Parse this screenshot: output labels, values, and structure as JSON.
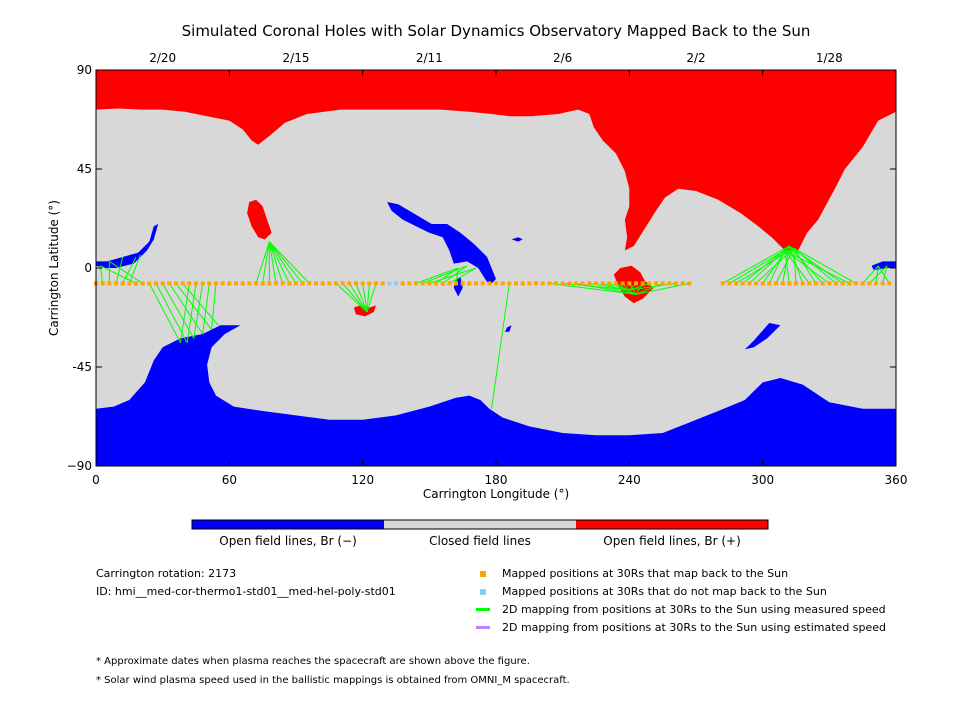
{
  "title": "Simulated Coronal Holes with Solar Dynamics Observatory Mapped Back to the Sun",
  "chart_data": {
    "type": "map",
    "xlabel": "Carrington Longitude (°)",
    "ylabel": "Carrington Latitude (°)",
    "xlim": [
      0,
      360
    ],
    "ylim": [
      -90,
      90
    ],
    "x_ticks": [
      0,
      60,
      120,
      180,
      240,
      300,
      360
    ],
    "y_ticks": [
      {
        "value": 90,
        "label": "90"
      },
      {
        "value": 45,
        "label": "45"
      },
      {
        "value": 0,
        "label": "0"
      },
      {
        "value": -45,
        "label": "-45"
      },
      {
        "value": -90,
        "label": "−90"
      }
    ],
    "top_axis_dates": [
      {
        "label": "2/20",
        "lon": 30
      },
      {
        "label": "2/15",
        "lon": 90
      },
      {
        "label": "2/11",
        "lon": 150
      },
      {
        "label": "2/6",
        "lon": 210
      },
      {
        "label": "2/2",
        "lon": 270
      },
      {
        "label": "1/28",
        "lon": 330
      }
    ],
    "colors": {
      "open_negative": "#0000ff",
      "closed": "#d8d8d8",
      "open_positive": "#ff0000",
      "mapped_back": "#ffa500",
      "not_mapped": "#87cefa",
      "measured_speed": "#00ff00",
      "estimated_speed": "#c080ff"
    },
    "colorbar_labels": [
      "Open field lines, Br (−)",
      "Closed field lines",
      "Open field lines, Br (+)"
    ],
    "north_positive_boundary": [
      [
        0,
        72
      ],
      [
        10,
        72.5
      ],
      [
        20,
        72
      ],
      [
        30,
        72
      ],
      [
        40,
        71
      ],
      [
        50,
        69
      ],
      [
        60,
        67
      ],
      [
        66,
        63
      ],
      [
        70,
        58
      ],
      [
        73,
        56
      ],
      [
        78,
        60
      ],
      [
        85,
        66
      ],
      [
        95,
        70
      ],
      [
        110,
        72
      ],
      [
        125,
        72
      ],
      [
        140,
        72
      ],
      [
        155,
        72
      ],
      [
        168,
        71
      ],
      [
        178,
        70
      ],
      [
        186,
        69
      ],
      [
        196,
        69
      ],
      [
        208,
        70
      ],
      [
        217,
        72
      ],
      [
        222,
        70
      ],
      [
        224,
        64
      ],
      [
        228,
        58
      ],
      [
        234,
        52
      ],
      [
        238,
        44
      ],
      [
        240,
        36
      ],
      [
        240,
        28
      ],
      [
        238,
        22
      ],
      [
        239,
        14
      ],
      [
        238,
        8
      ],
      [
        242,
        10
      ],
      [
        247,
        18
      ],
      [
        252,
        26
      ],
      [
        256,
        32
      ],
      [
        262,
        36
      ],
      [
        270,
        35
      ],
      [
        280,
        31
      ],
      [
        290,
        25
      ],
      [
        298,
        19
      ],
      [
        304,
        14
      ],
      [
        310,
        8
      ],
      [
        316,
        8
      ],
      [
        318,
        12
      ],
      [
        320,
        16
      ],
      [
        325,
        22
      ],
      [
        333,
        37
      ],
      [
        337,
        45
      ],
      [
        345,
        55
      ],
      [
        352,
        67
      ],
      [
        360,
        71
      ]
    ],
    "south_negative_boundary": [
      [
        0,
        -64
      ],
      [
        8,
        -63
      ],
      [
        15,
        -60
      ],
      [
        22,
        -52
      ],
      [
        26,
        -42
      ],
      [
        30,
        -36
      ],
      [
        38,
        -32
      ],
      [
        48,
        -30
      ],
      [
        56,
        -26
      ],
      [
        65,
        -26
      ],
      [
        58,
        -30
      ],
      [
        52,
        -36
      ],
      [
        50,
        -44
      ],
      [
        51,
        -52
      ],
      [
        54,
        -58
      ],
      [
        62,
        -63
      ],
      [
        75,
        -65
      ],
      [
        90,
        -67
      ],
      [
        105,
        -69
      ],
      [
        120,
        -69
      ],
      [
        135,
        -67
      ],
      [
        150,
        -63
      ],
      [
        162,
        -59
      ],
      [
        168,
        -58
      ],
      [
        173,
        -60
      ],
      [
        177,
        -64
      ],
      [
        183,
        -68
      ],
      [
        195,
        -72
      ],
      [
        210,
        -75
      ],
      [
        225,
        -76
      ],
      [
        240,
        -76
      ],
      [
        255,
        -75
      ],
      [
        265,
        -71
      ],
      [
        280,
        -65
      ],
      [
        292,
        -60
      ],
      [
        300,
        -52
      ],
      [
        308,
        -50
      ],
      [
        318,
        -53
      ],
      [
        330,
        -61
      ],
      [
        345,
        -64
      ],
      [
        360,
        -64
      ]
    ],
    "coronal_holes": [
      {
        "polarity": "positive",
        "polygon": [
          [
            69,
            30
          ],
          [
            72,
            31
          ],
          [
            75,
            28
          ],
          [
            77,
            22
          ],
          [
            79,
            16
          ],
          [
            76,
            13
          ],
          [
            73,
            14
          ],
          [
            70,
            19
          ],
          [
            68,
            25
          ]
        ]
      },
      {
        "polarity": "positive",
        "polygon": [
          [
            116,
            -18
          ],
          [
            119,
            -17
          ],
          [
            123,
            -18
          ],
          [
            126,
            -17
          ],
          [
            125,
            -20
          ],
          [
            121,
            -22
          ],
          [
            117,
            -21
          ]
        ]
      },
      {
        "polarity": "positive",
        "polygon": [
          [
            233,
            -3
          ],
          [
            236,
            0
          ],
          [
            241,
            1
          ],
          [
            245,
            -2
          ],
          [
            247,
            -6
          ],
          [
            251,
            -9
          ],
          [
            246,
            -14
          ],
          [
            242,
            -16
          ],
          [
            238,
            -13
          ],
          [
            235,
            -8
          ]
        ]
      },
      {
        "polarity": "negative",
        "polygon": [
          [
            0,
            3
          ],
          [
            5,
            3
          ],
          [
            12,
            5
          ],
          [
            19,
            7
          ],
          [
            24,
            12
          ],
          [
            26,
            19
          ],
          [
            28,
            20
          ],
          [
            26,
            13
          ],
          [
            23,
            8
          ],
          [
            17,
            2
          ],
          [
            9,
            0
          ],
          [
            4,
            0
          ],
          [
            0,
            1
          ]
        ]
      },
      {
        "polarity": "negative",
        "polygon": [
          [
            131,
            30
          ],
          [
            136,
            29
          ],
          [
            141,
            26
          ],
          [
            146,
            23
          ],
          [
            151,
            20
          ],
          [
            158,
            20
          ],
          [
            164,
            16
          ],
          [
            170,
            11
          ],
          [
            176,
            5
          ],
          [
            180,
            -5
          ],
          [
            177,
            -8
          ],
          [
            172,
            0
          ],
          [
            167,
            3
          ],
          [
            161,
            2
          ],
          [
            159,
            8
          ],
          [
            156,
            14
          ],
          [
            150,
            16
          ],
          [
            144,
            19
          ],
          [
            138,
            22
          ],
          [
            133,
            26
          ]
        ]
      },
      {
        "polarity": "negative",
        "polygon": [
          [
            162,
            -5
          ],
          [
            164,
            -4
          ],
          [
            165,
            -9
          ],
          [
            163,
            -13
          ],
          [
            161,
            -9
          ]
        ]
      },
      {
        "polarity": "negative",
        "polygon": [
          [
            187,
            13
          ],
          [
            190,
            14
          ],
          [
            192,
            13
          ],
          [
            190,
            12
          ]
        ]
      },
      {
        "polarity": "negative",
        "polygon": [
          [
            303,
            -25
          ],
          [
            308,
            -26
          ],
          [
            302,
            -32
          ],
          [
            296,
            -36
          ],
          [
            292,
            -37
          ],
          [
            296,
            -33
          ]
        ]
      },
      {
        "polarity": "negative",
        "polygon": [
          [
            349,
            1
          ],
          [
            354,
            3
          ],
          [
            360,
            3
          ],
          [
            360,
            0
          ],
          [
            356,
            0
          ],
          [
            350,
            -1
          ]
        ]
      },
      {
        "polarity": "negative",
        "polygon": [
          [
            185,
            -27
          ],
          [
            187,
            -26
          ],
          [
            186,
            -29
          ],
          [
            184,
            -29
          ]
        ]
      }
    ],
    "mapped_points_lat": -7,
    "mapped_points_lon": [
      0,
      3,
      6,
      9,
      12,
      15,
      18,
      21,
      24,
      27,
      30,
      33,
      36,
      39,
      42,
      45,
      48,
      51,
      54,
      57,
      60,
      63,
      66,
      69,
      72,
      75,
      78,
      81,
      84,
      87,
      90,
      93,
      96,
      99,
      102,
      105,
      108,
      111,
      114,
      117,
      120,
      123,
      126,
      129,
      138,
      141,
      144,
      147,
      150,
      153,
      156,
      159,
      162,
      165,
      168,
      171,
      174,
      177,
      180,
      183,
      186,
      189,
      192,
      195,
      198,
      201,
      204,
      207,
      210,
      213,
      216,
      219,
      222,
      225,
      228,
      231,
      234,
      237,
      240,
      243,
      246,
      249,
      252,
      255,
      258,
      261,
      264,
      267,
      282,
      285,
      288,
      291,
      294,
      297,
      300,
      303,
      306,
      309,
      312,
      315,
      318,
      321,
      324,
      327,
      330,
      333,
      336,
      339,
      342,
      345,
      348,
      351,
      354,
      357
    ],
    "unmapped_points_lon": [
      132,
      135
    ],
    "fieldline_groups": [
      {
        "footpoints": [
          [
            2,
            1
          ],
          [
            6,
            3
          ],
          [
            12,
            5
          ],
          [
            18,
            5
          ],
          [
            20,
            6
          ]
        ],
        "sources": [
          3,
          6,
          9,
          12,
          15,
          18,
          21
        ]
      },
      {
        "footpoints": [
          [
            38,
            -34
          ],
          [
            41,
            -34
          ],
          [
            44,
            -32
          ],
          [
            48,
            -30
          ],
          [
            52,
            -28
          ],
          [
            55,
            -26
          ]
        ],
        "sources": [
          24,
          27,
          30,
          33,
          36,
          39,
          42,
          45,
          48,
          51,
          54
        ]
      },
      {
        "footpoints": [
          [
            78,
            12
          ]
        ],
        "sources": [
          72,
          75,
          78,
          81,
          84,
          87,
          90,
          93,
          96
        ]
      },
      {
        "footpoints": [
          [
            122,
            -20
          ]
        ],
        "sources": [
          108,
          111,
          114,
          117,
          120,
          123,
          126
        ]
      },
      {
        "footpoints": [
          [
            163,
            0
          ],
          [
            167,
            1
          ],
          [
            171,
            0
          ]
        ],
        "sources": [
          144,
          147,
          150,
          153,
          156,
          159,
          162
        ]
      },
      {
        "footpoints": [
          [
            178,
            -64
          ]
        ],
        "sources": [
          186
        ]
      },
      {
        "footpoints": [
          [
            243,
            -12
          ],
          [
            240,
            -10
          ]
        ],
        "sources": [
          204,
          210,
          216,
          222,
          228,
          231,
          234,
          237,
          240,
          243,
          246,
          249,
          255,
          261,
          267
        ]
      },
      {
        "footpoints": [
          [
            312,
            10
          ],
          [
            310,
            8
          ],
          [
            314,
            9
          ]
        ],
        "sources": [
          282,
          285,
          288,
          291,
          294,
          297,
          300,
          303,
          306,
          309,
          312,
          315,
          318,
          321,
          324,
          327,
          330,
          333,
          336,
          339,
          342
        ]
      },
      {
        "footpoints": [
          [
            352,
            1
          ],
          [
            356,
            1
          ]
        ],
        "sources": [
          345,
          348,
          351,
          354,
          357
        ]
      }
    ]
  },
  "colorbar": {
    "label_negative": "Open field lines, Br (−)",
    "label_closed": "Closed field lines",
    "label_positive": "Open field lines, Br (+)"
  },
  "info": {
    "rotation": "Carrington rotation: 2173",
    "id": "ID: hmi__med-cor-thermo1-std01__med-hel-poly-std01"
  },
  "legend": {
    "mapped": "Mapped positions at 30Rs that map back to the Sun",
    "not_mapped": "Mapped positions at 30Rs that do not map back to the Sun",
    "measured": "2D mapping from positions at 30Rs to the Sun using measured speed",
    "estimated": "2D mapping from positions at 30Rs to the Sun using estimated speed"
  },
  "notes": {
    "dates": "* Approximate dates when plasma reaches the spacecraft are shown above the figure.",
    "speed": "* Solar wind plasma speed used in the ballistic mappings is obtained from OMNI_M spacecraft."
  }
}
